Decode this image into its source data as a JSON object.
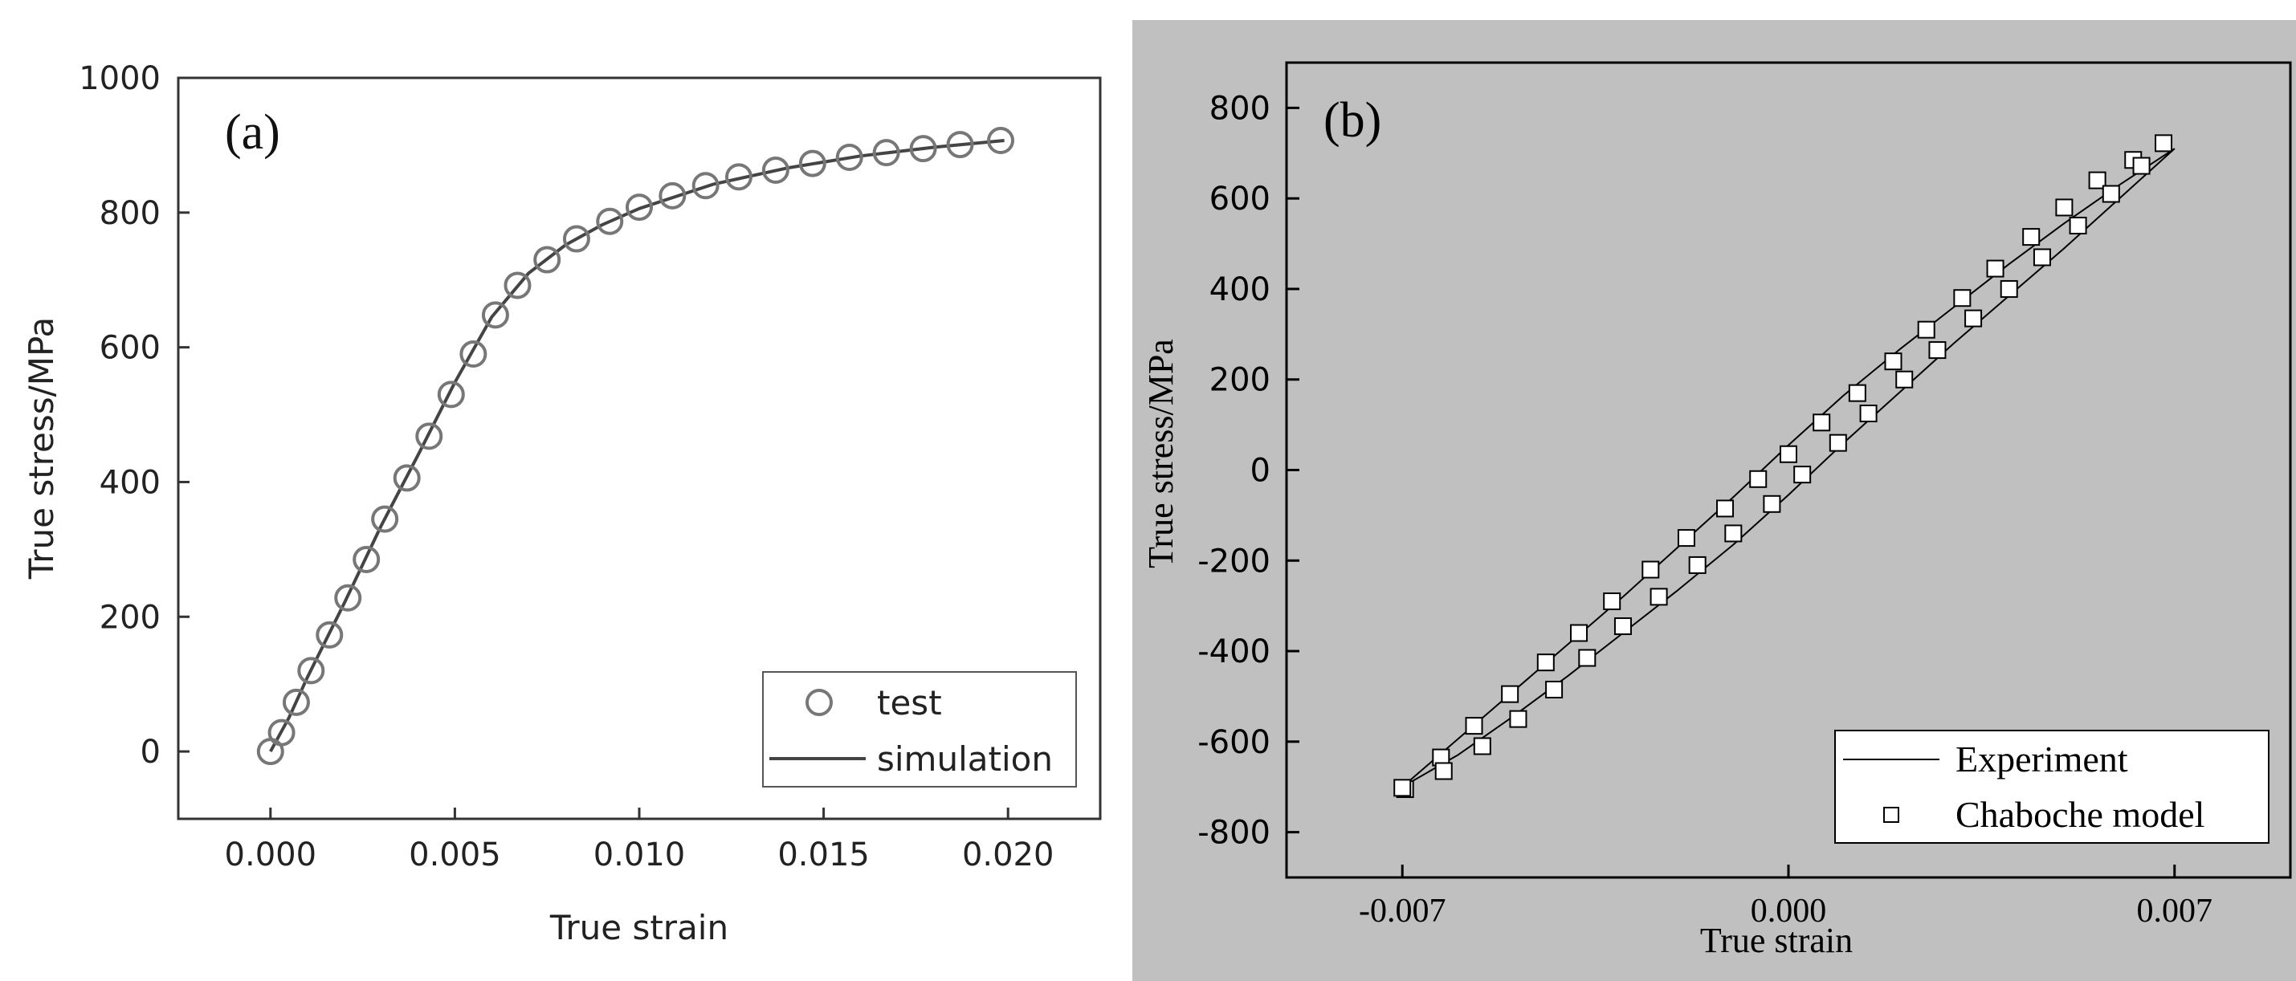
{
  "chart_data": [
    {
      "id": "a",
      "type": "scatter",
      "panel_label": "(a)",
      "xlabel": "True strain",
      "ylabel": "True stress/MPa",
      "xlim": [
        -0.0025,
        0.0225
      ],
      "ylim": [
        -100,
        1000
      ],
      "xticks": [
        0.0,
        0.005,
        0.01,
        0.015,
        0.02
      ],
      "xtick_labels": [
        "0.000",
        "0.005",
        "0.010",
        "0.015",
        "0.020"
      ],
      "yticks": [
        0,
        200,
        400,
        600,
        800,
        1000
      ],
      "ytick_labels": [
        "0",
        "200",
        "400",
        "600",
        "800",
        "1000"
      ],
      "legend": {
        "position": "bottom-right",
        "entries": [
          "test",
          "simulation"
        ]
      },
      "series": [
        {
          "name": "test",
          "marker": "circle",
          "points": [
            [
              0.0,
              0
            ],
            [
              0.0003,
              28
            ],
            [
              0.0007,
              73
            ],
            [
              0.0011,
              120
            ],
            [
              0.0016,
              173
            ],
            [
              0.0021,
              228
            ],
            [
              0.0026,
              285
            ],
            [
              0.0031,
              345
            ],
            [
              0.0037,
              406
            ],
            [
              0.0043,
              468
            ],
            [
              0.0049,
              530
            ],
            [
              0.0055,
              590
            ],
            [
              0.0061,
              648
            ],
            [
              0.0067,
              692
            ],
            [
              0.0075,
              730
            ],
            [
              0.0083,
              761
            ],
            [
              0.0092,
              787
            ],
            [
              0.01,
              808
            ],
            [
              0.0109,
              825
            ],
            [
              0.0118,
              840
            ],
            [
              0.0127,
              853
            ],
            [
              0.0137,
              863
            ],
            [
              0.0147,
              873
            ],
            [
              0.0157,
              882
            ],
            [
              0.0167,
              889
            ],
            [
              0.0177,
              895
            ],
            [
              0.0187,
              901
            ],
            [
              0.0198,
              907
            ]
          ]
        },
        {
          "name": "simulation",
          "line": true,
          "points": [
            [
              0.0,
              0
            ],
            [
              0.0005,
              50
            ],
            [
              0.001,
              110
            ],
            [
              0.002,
              220
            ],
            [
              0.003,
              335
            ],
            [
              0.004,
              440
            ],
            [
              0.005,
              548
            ],
            [
              0.006,
              645
            ],
            [
              0.007,
              710
            ],
            [
              0.008,
              752
            ],
            [
              0.009,
              782
            ],
            [
              0.01,
              806
            ],
            [
              0.012,
              842
            ],
            [
              0.014,
              866
            ],
            [
              0.016,
              884
            ],
            [
              0.018,
              897
            ],
            [
              0.0199,
              907
            ]
          ]
        }
      ]
    },
    {
      "id": "b",
      "type": "scatter",
      "panel_label": "(b)",
      "xlabel": "True strain",
      "ylabel": "True stress/MPa",
      "xlim": [
        -0.0091,
        0.0091
      ],
      "ylim": [
        -900,
        900
      ],
      "xticks": [
        -0.007,
        0.0,
        0.007
      ],
      "xtick_labels": [
        "-0.007",
        "0.000",
        "0.007"
      ],
      "yticks": [
        -800,
        -600,
        -400,
        -200,
        0,
        200,
        400,
        600,
        800
      ],
      "ytick_labels": [
        "-800",
        "-600",
        "-400",
        "-200",
        "0",
        "200",
        "400",
        "600",
        "800"
      ],
      "legend": {
        "position": "bottom-right",
        "entries": [
          "Experiment",
          "Chaboche model"
        ]
      },
      "series": [
        {
          "name": "Experiment",
          "line": true,
          "segments": [
            [
              [
                -0.007,
                -700
              ],
              [
                -0.006,
                -595
              ],
              [
                -0.005,
                -490
              ],
              [
                -0.004,
                -385
              ],
              [
                -0.003,
                -280
              ],
              [
                -0.002,
                -170
              ],
              [
                -0.001,
                -60
              ],
              [
                0.0,
                55
              ],
              [
                0.001,
                165
              ],
              [
                0.002,
                265
              ],
              [
                0.003,
                360
              ],
              [
                0.004,
                455
              ],
              [
                0.005,
                545
              ],
              [
                0.006,
                630
              ],
              [
                0.007,
                710
              ]
            ],
            [
              [
                0.007,
                710
              ],
              [
                0.006,
                600
              ],
              [
                0.005,
                490
              ],
              [
                0.004,
                385
              ],
              [
                0.003,
                280
              ],
              [
                0.002,
                170
              ],
              [
                0.001,
                60
              ],
              [
                0.0,
                -55
              ],
              [
                -0.001,
                -165
              ],
              [
                -0.002,
                -265
              ],
              [
                -0.003,
                -360
              ],
              [
                -0.004,
                -455
              ],
              [
                -0.005,
                -545
              ],
              [
                -0.006,
                -630
              ],
              [
                -0.007,
                -700
              ]
            ]
          ]
        },
        {
          "name": "Chaboche model",
          "marker": "square",
          "points": [
            [
              -0.00695,
              -705
            ],
            [
              -0.007,
              -702
            ],
            [
              -0.0063,
              -635
            ],
            [
              -0.00625,
              -665
            ],
            [
              -0.0057,
              -565
            ],
            [
              -0.00555,
              -610
            ],
            [
              -0.00505,
              -495
            ],
            [
              -0.0049,
              -550
            ],
            [
              -0.0044,
              -425
            ],
            [
              -0.00425,
              -485
            ],
            [
              -0.0038,
              -360
            ],
            [
              -0.00365,
              -415
            ],
            [
              -0.0032,
              -290
            ],
            [
              -0.003,
              -345
            ],
            [
              -0.0025,
              -220
            ],
            [
              -0.00235,
              -280
            ],
            [
              -0.00185,
              -150
            ],
            [
              -0.00165,
              -210
            ],
            [
              -0.00115,
              -85
            ],
            [
              -0.001,
              -140
            ],
            [
              -0.00055,
              -20
            ],
            [
              -0.0003,
              -75
            ],
            [
              0.0,
              35
            ],
            [
              0.00025,
              -10
            ],
            [
              0.0006,
              105
            ],
            [
              0.0009,
              60
            ],
            [
              0.00125,
              170
            ],
            [
              0.00145,
              125
            ],
            [
              0.0019,
              240
            ],
            [
              0.0021,
              200
            ],
            [
              0.0025,
              310
            ],
            [
              0.0027,
              265
            ],
            [
              0.00315,
              380
            ],
            [
              0.00335,
              335
            ],
            [
              0.00375,
              445
            ],
            [
              0.004,
              400
            ],
            [
              0.0044,
              515
            ],
            [
              0.0046,
              470
            ],
            [
              0.005,
              580
            ],
            [
              0.00525,
              540
            ],
            [
              0.0056,
              640
            ],
            [
              0.00585,
              610
            ],
            [
              0.00625,
              685
            ],
            [
              0.0064,
              672
            ],
            [
              0.0068,
              722
            ]
          ]
        }
      ]
    }
  ]
}
